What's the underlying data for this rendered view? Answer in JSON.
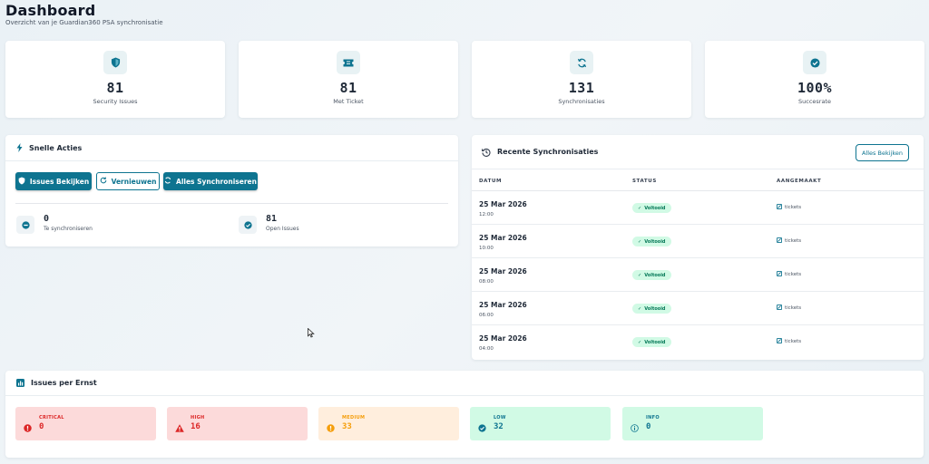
{
  "header": {
    "title": "Dashboard",
    "subtitle": "Overzicht van je Guardian360 PSA synchronisatie"
  },
  "stats": [
    {
      "icon": "shield-icon",
      "value": "81",
      "label": "Security Issues"
    },
    {
      "icon": "ticket-icon",
      "value": "81",
      "label": "Met Ticket"
    },
    {
      "icon": "sync-icon",
      "value": "131",
      "label": "Synchronisaties"
    },
    {
      "icon": "check-circle-icon",
      "value": "100%",
      "label": "Succesrate"
    }
  ],
  "quick_actions": {
    "title": "Snelle Acties",
    "buttons": {
      "issues": "Issues Bekijken",
      "refresh": "Vernieuwen",
      "sync_all": "Alles Synchroniseren"
    },
    "mini_stats": [
      {
        "icon": "minus-circle-icon",
        "value": "0",
        "label": "Te synchroniseren"
      },
      {
        "icon": "check-circle-icon",
        "value": "81",
        "label": "Open Issues"
      }
    ]
  },
  "recent_syncs": {
    "title": "Recente Synchronisaties",
    "view_all": "Alles Bekijken",
    "columns": [
      "DATUM",
      "STATUS",
      "AANGEMAAKT"
    ],
    "rows": [
      {
        "date": "25 Mar 2026",
        "time": "12:00",
        "status": "Voltooid",
        "created": "tickets"
      },
      {
        "date": "25 Mar 2026",
        "time": "10:00",
        "status": "Voltooid",
        "created": "tickets"
      },
      {
        "date": "25 Mar 2026",
        "time": "08:00",
        "status": "Voltooid",
        "created": "tickets"
      },
      {
        "date": "25 Mar 2026",
        "time": "06:00",
        "status": "Voltooid",
        "created": "tickets"
      },
      {
        "date": "25 Mar 2026",
        "time": "04:00",
        "status": "Voltooid",
        "created": "tickets"
      }
    ]
  },
  "severity": {
    "title": "Issues per Ernst",
    "items": [
      {
        "label": "CRITICAL",
        "value": "0",
        "bg": "#fcdada",
        "color": "#dc2626",
        "icon": "error-icon"
      },
      {
        "label": "HIGH",
        "value": "16",
        "bg": "#fcdada",
        "color": "#dc2626",
        "icon": "warning-icon"
      },
      {
        "label": "MEDIUM",
        "value": "33",
        "bg": "#ffeedd",
        "color": "#f59e0b",
        "icon": "alert-circle-icon"
      },
      {
        "label": "LOW",
        "value": "32",
        "bg": "#d1fae5",
        "color": "#0e7490",
        "icon": "check-circle-icon"
      },
      {
        "label": "INFO",
        "value": "0",
        "bg": "#d1fae5",
        "color": "#0e7490",
        "icon": "info-icon"
      }
    ]
  },
  "colors": {
    "accent": "#0e7490",
    "success_bg": "#d1fae5",
    "success_text": "#047857"
  }
}
